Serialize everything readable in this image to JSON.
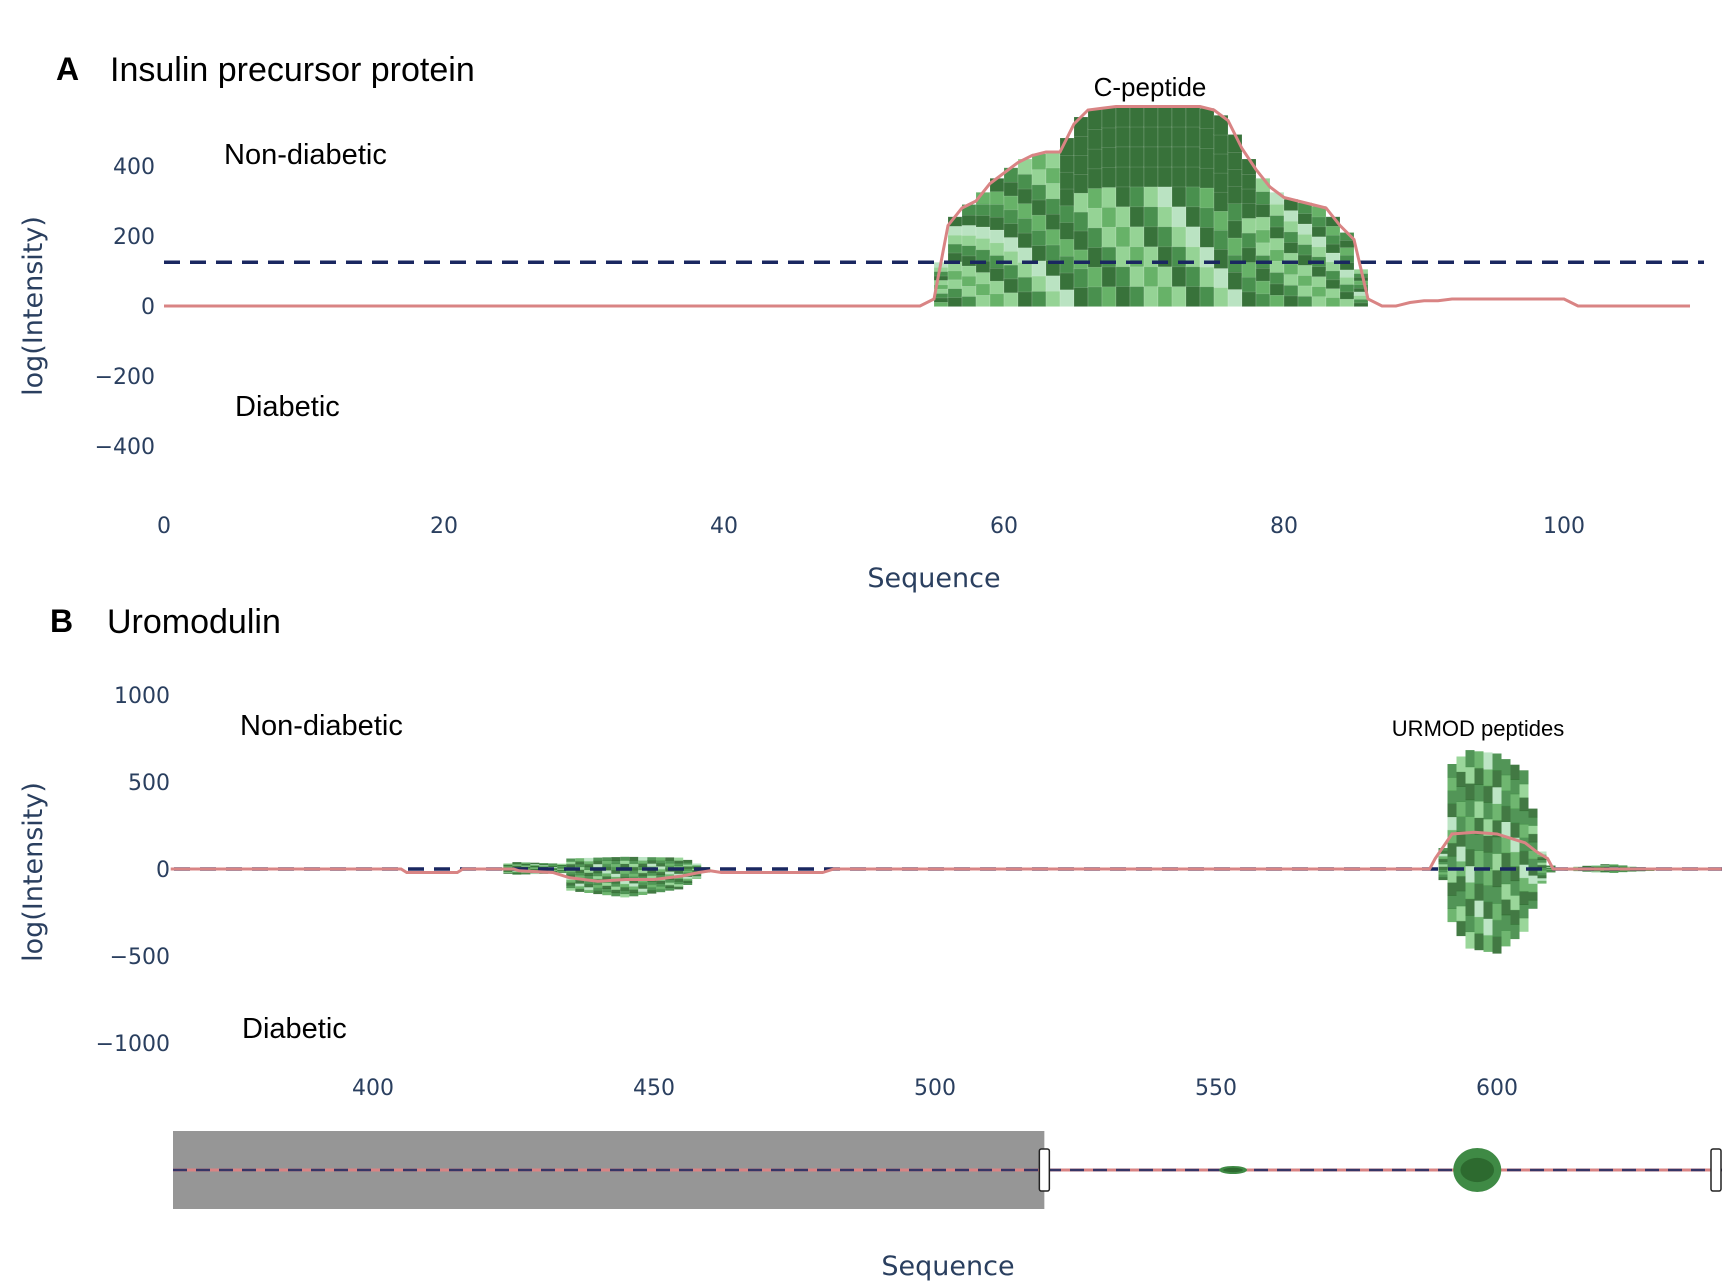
{
  "colors": {
    "axis_text": "#2a3f5f",
    "threshold_line": "#1a2760",
    "sum_line": "#d98484",
    "diabetic_sum_line": "#b03030",
    "greens": [
      "#2d6a2f",
      "#3f8a45",
      "#5fae60",
      "#8fd18f",
      "#b6e2bf",
      "#e6f4e8"
    ],
    "range_mask": "#969696"
  },
  "panels": {
    "a": {
      "letter": "A",
      "title": "Insulin precursor protein",
      "ylabel": "log(Intensity)",
      "xlabel": "Sequence",
      "upper_label": "Non-diabetic",
      "lower_label": "Diabetic",
      "annotation": "C-peptide",
      "xticks": [
        "0",
        "20",
        "40",
        "60",
        "80",
        "100"
      ],
      "yticks": [
        "400",
        "200",
        "0",
        "−200",
        "−400"
      ]
    },
    "b": {
      "letter": "B",
      "title": "Uromodulin",
      "ylabel": "log(Intensity)",
      "xlabel": "Sequence",
      "upper_label": "Non-diabetic",
      "lower_label": "Diabetic",
      "annotation": "URMOD peptides",
      "xticks": [
        "400",
        "450",
        "500",
        "550",
        "600"
      ],
      "yticks": [
        "1000",
        "500",
        "0",
        "−500",
        "−1000"
      ]
    }
  },
  "chart_data": [
    {
      "type": "area",
      "title": "Insulin precursor protein",
      "xlabel": "Sequence",
      "ylabel": "log(Intensity)",
      "xlim": [
        0,
        110
      ],
      "ylim": [
        -500,
        600
      ],
      "threshold": 125,
      "annotations": [
        {
          "text": "C-peptide",
          "x": 70,
          "y": 620
        }
      ],
      "series": [
        {
          "name": "Non-diabetic",
          "x": [
            0,
            54,
            55,
            56,
            57,
            58,
            59,
            60,
            61,
            62,
            63,
            64,
            65,
            66,
            67,
            68,
            69,
            70,
            71,
            72,
            73,
            74,
            75,
            76,
            77,
            78,
            79,
            80,
            81,
            82,
            83,
            84,
            85,
            86,
            87,
            88,
            89,
            90,
            91,
            92,
            100,
            101,
            102,
            109
          ],
          "y": [
            0,
            0,
            20,
            230,
            280,
            300,
            350,
            380,
            410,
            430,
            440,
            440,
            520,
            560,
            565,
            570,
            570,
            570,
            570,
            570,
            570,
            570,
            560,
            530,
            450,
            390,
            340,
            310,
            300,
            290,
            280,
            230,
            190,
            20,
            0,
            0,
            10,
            15,
            15,
            20,
            20,
            0,
            0,
            0
          ]
        },
        {
          "name": "Diabetic",
          "x": [
            0,
            109
          ],
          "y": [
            0,
            0
          ]
        }
      ]
    },
    {
      "type": "area",
      "title": "Uromodulin",
      "xlabel": "Sequence",
      "ylabel": "log(Intensity)",
      "xlim": [
        364,
        640
      ],
      "ylim": [
        -1000,
        1000
      ],
      "threshold": 0,
      "range_slider": {
        "selected": [
          521,
          640
        ]
      },
      "annotations": [
        {
          "text": "URMOD peptides",
          "x": 597,
          "y": 800
        }
      ],
      "series": [
        {
          "name": "Non-diabetic",
          "x": [
            364,
            405,
            420,
            425,
            434,
            435,
            445,
            455,
            460,
            470,
            590,
            592,
            595,
            600,
            605,
            608,
            610,
            620,
            625,
            640
          ],
          "y": [
            0,
            0,
            0,
            40,
            30,
            60,
            70,
            65,
            0,
            0,
            0,
            600,
            680,
            660,
            560,
            100,
            0,
            30,
            10,
            0
          ]
        },
        {
          "name": "Diabetic",
          "x": [
            364,
            405,
            420,
            425,
            434,
            435,
            445,
            455,
            460,
            470,
            590,
            592,
            595,
            600,
            605,
            608,
            610,
            620,
            625,
            640
          ],
          "y": [
            0,
            0,
            0,
            -30,
            -20,
            -120,
            -160,
            -110,
            0,
            0,
            0,
            -300,
            -450,
            -480,
            -350,
            -80,
            0,
            -20,
            -10,
            0
          ]
        },
        {
          "name": "Non-diabetic",
          "x": [
            364,
            405,
            406,
            415,
            416,
            425,
            426,
            432,
            435,
            440,
            445,
            450,
            455,
            458,
            460,
            462,
            480,
            482,
            588,
            589,
            592,
            596,
            600,
            605,
            607,
            609,
            610,
            620,
            625,
            640
          ],
          "y": [
            0,
            0,
            -20,
            -20,
            0,
            0,
            -10,
            -20,
            -50,
            -70,
            -60,
            -60,
            -40,
            -20,
            -10,
            -20,
            -20,
            0,
            0,
            60,
            200,
            210,
            200,
            150,
            100,
            60,
            0,
            0,
            0,
            0
          ]
        }
      ]
    }
  ]
}
